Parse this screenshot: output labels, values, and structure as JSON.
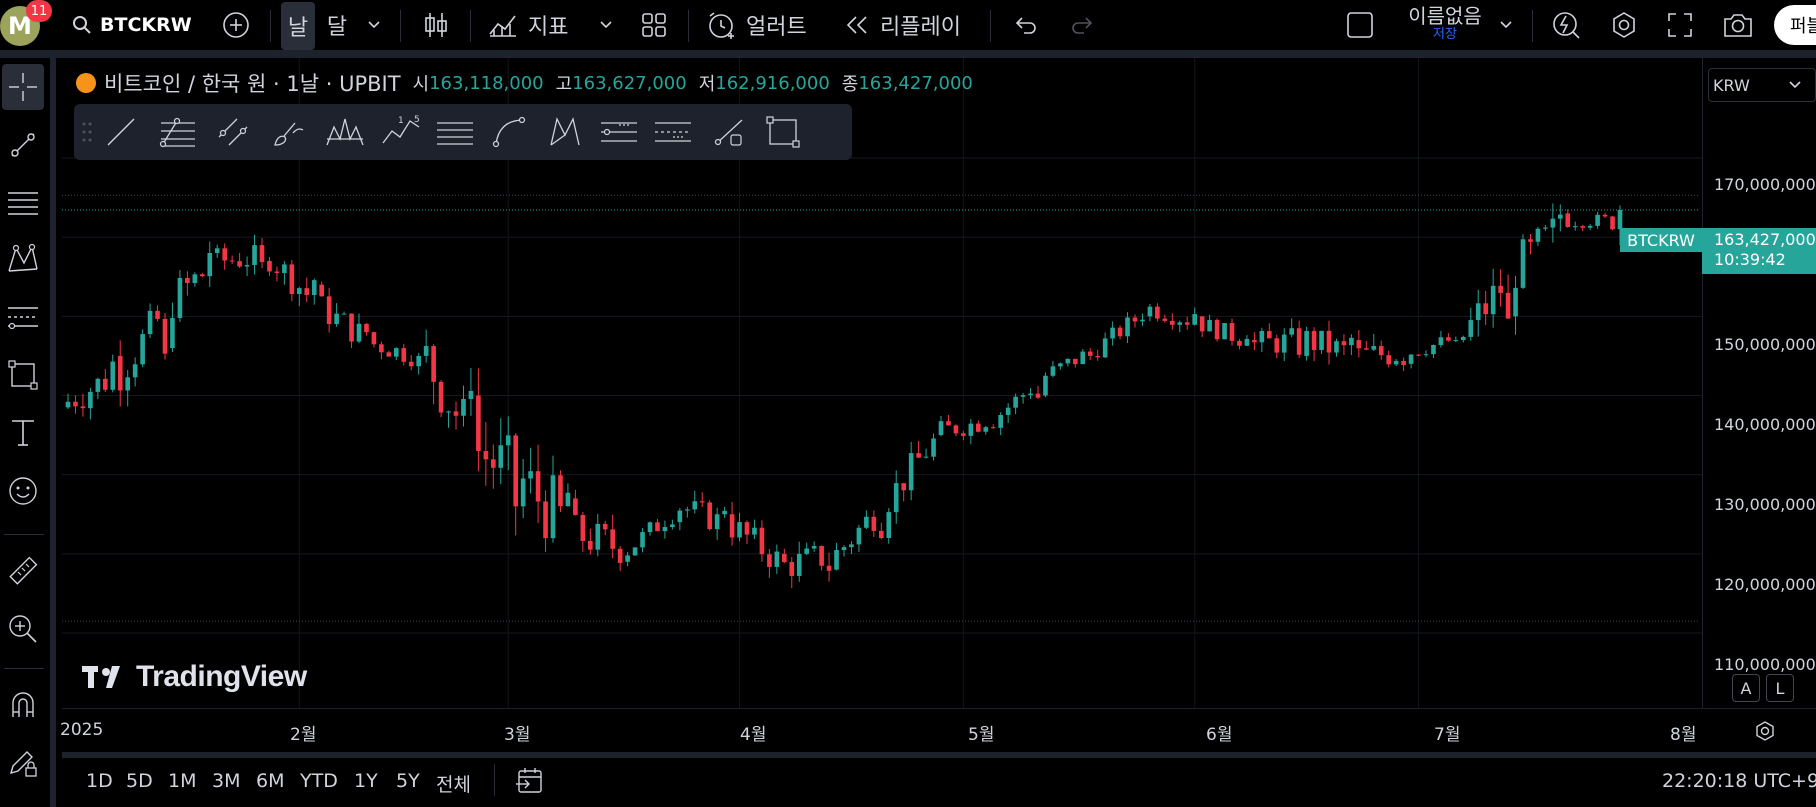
{
  "topbar": {
    "avatar_letter": "M",
    "notification_count": "11",
    "symbol": "BTCKRW",
    "interval_day": "날",
    "interval_month": "달",
    "indicators_label": "지표",
    "alerts_label": "얼러트",
    "replay_label": "리플레이",
    "layout_name": "이름없음",
    "save_status": "저장",
    "publish_label": "퍼블"
  },
  "legend": {
    "title": "비트코인 / 한국 원 · 1날 · UPBIT",
    "open_label": "시",
    "open": "163,118,000",
    "high_label": "고",
    "high": "163,627,000",
    "low_label": "저",
    "low": "162,916,000",
    "close_label": "종",
    "close": "163,427,000"
  },
  "price_axis": {
    "currency": "KRW",
    "labels": [
      "170,000,000",
      "150,000,000",
      "140,000,000",
      "130,000,000",
      "120,000,000",
      "110,000,000"
    ],
    "symbol_tag": "BTCKRW",
    "last_price": "163,427,000",
    "countdown": "10:39:42",
    "auto_label": "A",
    "log_label": "L"
  },
  "time_axis": {
    "labels": [
      "2025",
      "2월",
      "3월",
      "4월",
      "5월",
      "6월",
      "7월",
      "8월"
    ]
  },
  "bottombar": {
    "ranges": [
      "1D",
      "5D",
      "1M",
      "3M",
      "6M",
      "YTD",
      "1Y",
      "5Y",
      "전체"
    ],
    "clock": "22:20:18 UTC+9"
  },
  "watermark": {
    "text": "TradingView"
  },
  "colors": {
    "up": "#26a69a",
    "down": "#f23645",
    "accent": "#2962ff"
  },
  "chart_data": {
    "type": "candlestick",
    "symbol": "BTCKRW",
    "exchange": "UPBIT",
    "interval": "1D",
    "xlabel": "",
    "ylabel": "",
    "ylim": [
      108000000,
      173000000
    ],
    "month_ticks": [
      "2025",
      "2월",
      "3월",
      "4월",
      "5월",
      "6월",
      "7월",
      "8월"
    ],
    "ohlc_samples": [
      [
        "2025-01-01",
        138500000,
        141000000,
        136500000,
        140000000
      ],
      [
        "2025-01-08",
        145000000,
        151000000,
        138000000,
        141000000
      ],
      [
        "2025-01-15",
        146000000,
        160000000,
        145000000,
        158000000
      ],
      [
        "2025-01-21",
        158000000,
        163000000,
        153000000,
        156000000
      ],
      [
        "2025-01-28",
        157000000,
        161000000,
        151000000,
        158000000
      ],
      [
        "2025-02-04",
        154000000,
        157000000,
        146000000,
        148000000
      ],
      [
        "2025-02-11",
        148000000,
        150000000,
        142000000,
        145000000
      ],
      [
        "2025-02-18",
        145000000,
        147000000,
        140000000,
        144000000
      ],
      [
        "2025-02-25",
        140000000,
        142000000,
        119000000,
        126000000
      ],
      [
        "2025-03-03",
        126000000,
        145000000,
        118000000,
        132000000
      ],
      [
        "2025-03-10",
        127000000,
        130000000,
        115000000,
        118000000
      ],
      [
        "2025-03-17",
        119000000,
        124000000,
        116000000,
        122000000
      ],
      [
        "2025-03-24",
        124000000,
        130000000,
        122000000,
        128000000
      ],
      [
        "2025-03-31",
        125000000,
        130000000,
        120000000,
        122000000
      ],
      [
        "2025-04-07",
        120000000,
        124000000,
        112000000,
        117000000
      ],
      [
        "2025-04-14",
        118000000,
        124000000,
        117000000,
        122000000
      ],
      [
        "2025-04-21",
        122000000,
        133000000,
        121000000,
        132000000
      ],
      [
        "2025-04-28",
        135000000,
        138000000,
        133000000,
        136000000
      ],
      [
        "2025-05-05",
        136000000,
        141000000,
        133000000,
        138000000
      ],
      [
        "2025-05-12",
        140000000,
        146000000,
        139000000,
        145000000
      ],
      [
        "2025-05-19",
        145000000,
        149000000,
        143000000,
        147000000
      ],
      [
        "2025-05-26",
        150000000,
        155000000,
        148000000,
        152000000
      ],
      [
        "2025-06-02",
        150000000,
        153000000,
        146000000,
        148000000
      ],
      [
        "2025-06-09",
        147000000,
        150000000,
        144000000,
        146000000
      ],
      [
        "2025-06-16",
        145000000,
        151000000,
        141000000,
        149000000
      ],
      [
        "2025-06-23",
        147000000,
        149000000,
        138000000,
        143000000
      ],
      [
        "2025-06-30",
        144000000,
        149000000,
        143000000,
        147000000
      ],
      [
        "2025-07-07",
        147000000,
        149000000,
        145000000,
        148000000
      ],
      [
        "2025-07-14",
        150000000,
        166000000,
        149000000,
        162000000
      ],
      [
        "2025-07-21",
        163000000,
        164000000,
        159000000,
        161000000
      ],
      [
        "2025-07-28",
        161000000,
        164000000,
        159000000,
        163427000
      ]
    ]
  }
}
